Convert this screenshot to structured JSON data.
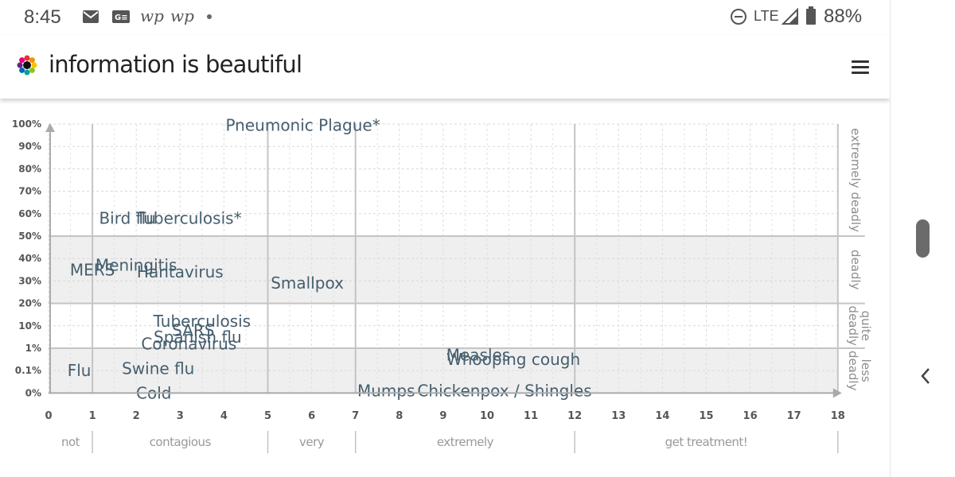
{
  "status_bar": {
    "time": "8:45",
    "notification_icons": [
      "mail-icon",
      "news-icon",
      "wp-icon",
      "wp-icon",
      "dot-icon"
    ],
    "wp_glyph": "wp",
    "network": "LTE",
    "battery": "88%"
  },
  "header": {
    "title": "information is beautiful",
    "menu_icon": "hamburger-menu-icon"
  },
  "colors": {
    "band": "#efefef",
    "grid": "#d0d0d0",
    "label": "#455e6e",
    "axis": "#aaaaaa"
  },
  "chart_data": {
    "type": "scatter",
    "x": {
      "ticks": [
        0,
        1,
        2,
        3,
        4,
        5,
        6,
        7,
        8,
        9,
        10,
        11,
        12,
        13,
        14,
        15,
        16,
        17,
        18
      ],
      "range": [
        0,
        18
      ]
    },
    "y": {
      "ticks": [
        "100%",
        "90%",
        "80%",
        "70%",
        "60%",
        "50%",
        "40%",
        "30%",
        "20%",
        "10%",
        "1%",
        "0.1%",
        "0%"
      ]
    },
    "deadliness_bands": [
      "extremely deadly",
      "deadly",
      "quite deadly",
      "less deadly"
    ],
    "contagiousness_bands": [
      "not",
      "contagious",
      "very",
      "extremely",
      "get treatment!"
    ],
    "points": [
      {
        "label": "Pneumonic Plague*",
        "x": 5.8,
        "y_index": 0.05
      },
      {
        "label": "Bird flu",
        "x": 1.8,
        "y_index": 4.2
      },
      {
        "label": "Tuberculosis*",
        "x": 3.2,
        "y_index": 4.2
      },
      {
        "label": "MERS",
        "x": 1.0,
        "y_index": 6.5
      },
      {
        "label": "Meningitis",
        "x": 2.0,
        "y_index": 6.3
      },
      {
        "label": "Hantavirus",
        "x": 3.0,
        "y_index": 6.6
      },
      {
        "label": "Smallpox",
        "x": 5.9,
        "y_index": 7.1
      },
      {
        "label": "Tuberculosis",
        "x": 3.5,
        "y_index": 8.8
      },
      {
        "label": "SARS",
        "x": 3.3,
        "y_index": 9.2
      },
      {
        "label": "Spanish flu",
        "x": 3.4,
        "y_index": 9.5
      },
      {
        "label": "Coronavirus",
        "x": 3.2,
        "y_index": 9.8
      },
      {
        "label": "Measles",
        "x": 9.8,
        "y_index": 10.3
      },
      {
        "label": "Whooping cough",
        "x": 10.6,
        "y_index": 10.5
      },
      {
        "label": "Flu",
        "x": 0.7,
        "y_index": 11.0
      },
      {
        "label": "Swine flu",
        "x": 2.5,
        "y_index": 10.9
      },
      {
        "label": "Cold",
        "x": 2.4,
        "y_index": 12.0
      },
      {
        "label": "Mumps",
        "x": 7.7,
        "y_index": 11.9
      },
      {
        "label": "Chickenpox / Shingles",
        "x": 10.4,
        "y_index": 11.9
      }
    ]
  }
}
